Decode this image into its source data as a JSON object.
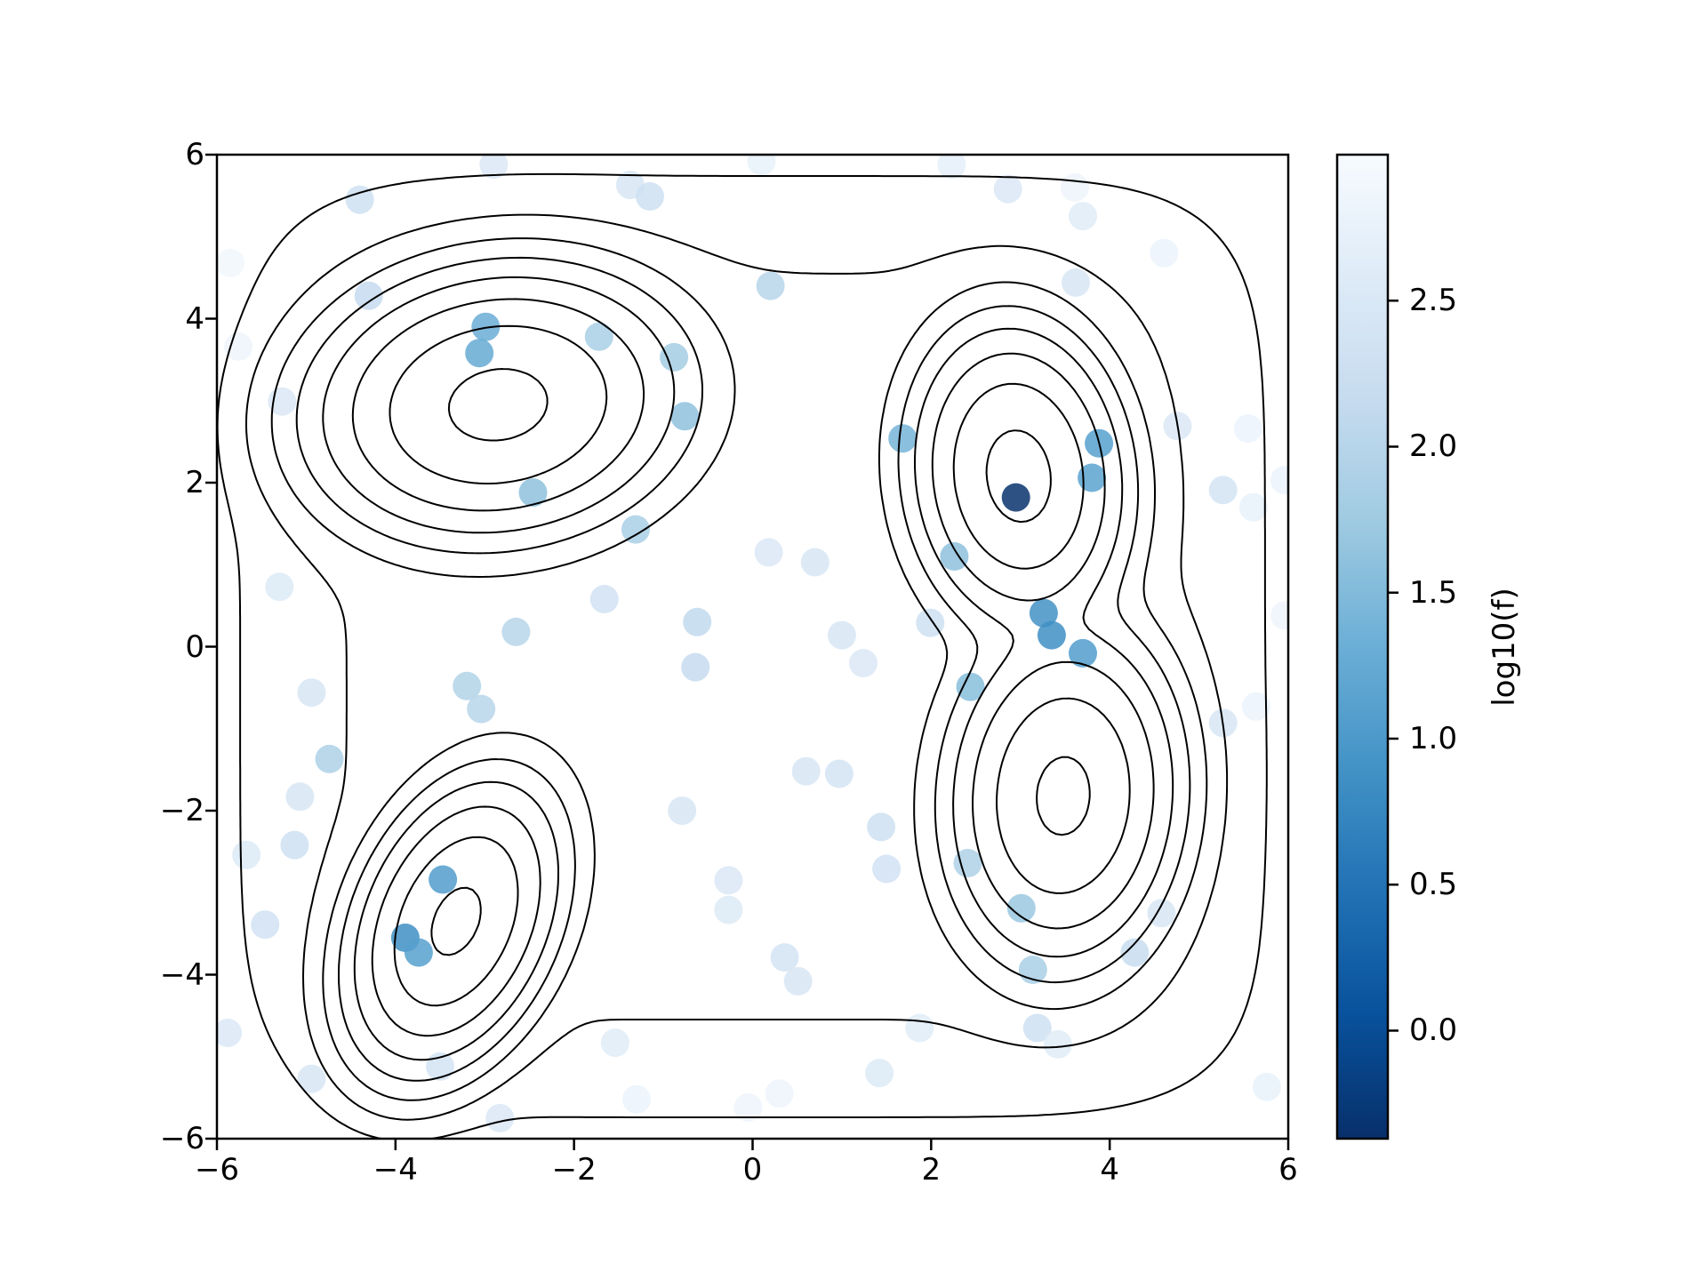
{
  "figure": {
    "background": "#ffffff",
    "title": ""
  },
  "chart_data": {
    "type": "scatter",
    "subtype": "contour+scatter",
    "title": "",
    "xlabel": "",
    "ylabel": "",
    "xlim": [
      -6,
      6
    ],
    "ylim": [
      -6,
      6
    ],
    "grid": false,
    "xtick_values": [
      -6,
      -4,
      -2,
      0,
      2,
      4,
      6
    ],
    "xtick_labels": [
      "−6",
      "−4",
      "−2",
      "0",
      "2",
      "4",
      "6"
    ],
    "ytick_values": [
      6,
      4,
      2,
      0,
      -2,
      -4,
      -6
    ],
    "ytick_labels": [
      "6",
      "4",
      "2",
      "0",
      "−2",
      "−4",
      "−6"
    ],
    "marker": {
      "radius_px": 16,
      "opacity": 0.85
    },
    "colormap": {
      "name": "Blues (reversed: high value = light, low value = dark)",
      "anchors": [
        "#f7fbff",
        "#deebf7",
        "#c6dbef",
        "#9ecae1",
        "#6baed6",
        "#4292c6",
        "#2171b5",
        "#08519c",
        "#08306b"
      ]
    },
    "colorbar": {
      "label": "log10(f)",
      "vmax": 3.0,
      "vmin": -0.37,
      "tick_values": [
        2.5,
        2.0,
        1.5,
        1.0,
        0.5,
        0.0
      ],
      "tick_labels": [
        "2.5",
        "2.0",
        "1.5",
        "1.0",
        "0.5",
        "0.0"
      ]
    },
    "contour": {
      "line_color": "#000000",
      "line_width": 2,
      "levels": [
        0.0,
        0.4,
        0.8,
        1.2,
        1.6,
        2.0,
        2.4,
        2.8
      ],
      "comment": "contour of log10(f), f = sum of 4 gaussian peaks + broad base plateau",
      "components": [
        {
          "cx": -2.85,
          "cy": 2.95,
          "sx": 0.8,
          "sy": 0.62,
          "rot": 0.2,
          "amp": 800
        },
        {
          "cx": 2.98,
          "cy": 2.08,
          "sx": 0.46,
          "sy": 0.72,
          "rot": 0.1,
          "amp": 850
        },
        {
          "cx": 3.48,
          "cy": -1.82,
          "sx": 0.5,
          "sy": 0.8,
          "rot": -0.06,
          "amp": 750
        },
        {
          "cx": -3.32,
          "cy": -3.35,
          "sx": 0.42,
          "sy": 0.72,
          "rot": -0.35,
          "amp": 750
        }
      ],
      "base": {
        "amp": 3.4,
        "scale": 5.55,
        "power": 6,
        "cx": 0,
        "cy": 0
      }
    },
    "points": [
      {
        "x": -2.9,
        "y": 5.88,
        "v": 2.5
      },
      {
        "x": -4.4,
        "y": 5.45,
        "v": 2.3
      },
      {
        "x": -1.37,
        "y": 5.63,
        "v": 2.45
      },
      {
        "x": -1.15,
        "y": 5.49,
        "v": 2.3
      },
      {
        "x": 0.1,
        "y": 5.92,
        "v": 2.75
      },
      {
        "x": 2.23,
        "y": 5.88,
        "v": 2.7
      },
      {
        "x": 2.86,
        "y": 5.58,
        "v": 2.5
      },
      {
        "x": 3.61,
        "y": 5.6,
        "v": 2.85
      },
      {
        "x": 3.7,
        "y": 5.25,
        "v": 2.6
      },
      {
        "x": 4.61,
        "y": 4.8,
        "v": 2.8
      },
      {
        "x": 3.62,
        "y": 4.44,
        "v": 2.45
      },
      {
        "x": -5.85,
        "y": 4.68,
        "v": 2.9
      },
      {
        "x": -4.3,
        "y": 4.28,
        "v": 2.15
      },
      {
        "x": 0.2,
        "y": 4.4,
        "v": 2.0
      },
      {
        "x": -2.99,
        "y": 3.9,
        "v": 1.3
      },
      {
        "x": -3.06,
        "y": 3.58,
        "v": 1.25
      },
      {
        "x": -1.72,
        "y": 3.78,
        "v": 1.85
      },
      {
        "x": -0.88,
        "y": 3.53,
        "v": 1.8
      },
      {
        "x": -5.76,
        "y": 3.66,
        "v": 2.85
      },
      {
        "x": -5.27,
        "y": 2.99,
        "v": 2.5
      },
      {
        "x": -0.76,
        "y": 2.81,
        "v": 1.6
      },
      {
        "x": 1.68,
        "y": 2.54,
        "v": 1.4
      },
      {
        "x": 3.88,
        "y": 2.48,
        "v": 1.1
      },
      {
        "x": 3.8,
        "y": 2.06,
        "v": 1.15
      },
      {
        "x": 2.95,
        "y": 1.82,
        "v": -0.35
      },
      {
        "x": 4.76,
        "y": 2.69,
        "v": 2.5
      },
      {
        "x": 5.55,
        "y": 2.66,
        "v": 2.8
      },
      {
        "x": 5.27,
        "y": 1.91,
        "v": 2.4
      },
      {
        "x": 5.61,
        "y": 1.7,
        "v": 2.75
      },
      {
        "x": 5.96,
        "y": 2.03,
        "v": 2.8
      },
      {
        "x": -2.46,
        "y": 1.88,
        "v": 1.6
      },
      {
        "x": -1.31,
        "y": 1.43,
        "v": 1.85
      },
      {
        "x": -5.3,
        "y": 0.73,
        "v": 2.55
      },
      {
        "x": -1.66,
        "y": 0.58,
        "v": 2.35
      },
      {
        "x": 2.26,
        "y": 1.1,
        "v": 1.6
      },
      {
        "x": 0.18,
        "y": 1.15,
        "v": 2.5
      },
      {
        "x": 0.7,
        "y": 1.03,
        "v": 2.45
      },
      {
        "x": 3.26,
        "y": 0.41,
        "v": 0.9
      },
      {
        "x": 3.35,
        "y": 0.14,
        "v": 0.85
      },
      {
        "x": 1.99,
        "y": 0.29,
        "v": 2.3
      },
      {
        "x": 1.0,
        "y": 0.14,
        "v": 2.45
      },
      {
        "x": -0.62,
        "y": 0.3,
        "v": 2.1
      },
      {
        "x": -2.65,
        "y": 0.18,
        "v": 2.0
      },
      {
        "x": -4.94,
        "y": -0.56,
        "v": 2.45
      },
      {
        "x": -3.2,
        "y": -0.48,
        "v": 1.95
      },
      {
        "x": -3.04,
        "y": -0.76,
        "v": 2.0
      },
      {
        "x": -0.64,
        "y": -0.25,
        "v": 2.15
      },
      {
        "x": 1.24,
        "y": -0.2,
        "v": 2.5
      },
      {
        "x": 2.44,
        "y": -0.49,
        "v": 1.55
      },
      {
        "x": 3.7,
        "y": -0.08,
        "v": 1.05
      },
      {
        "x": 5.27,
        "y": -0.93,
        "v": 2.45
      },
      {
        "x": 5.64,
        "y": -0.73,
        "v": 2.8
      },
      {
        "x": -4.74,
        "y": -1.37,
        "v": 1.9
      },
      {
        "x": -5.07,
        "y": -1.83,
        "v": 2.45
      },
      {
        "x": 0.6,
        "y": -1.52,
        "v": 2.45
      },
      {
        "x": 0.97,
        "y": -1.55,
        "v": 2.4
      },
      {
        "x": -5.13,
        "y": -2.42,
        "v": 2.3
      },
      {
        "x": -5.67,
        "y": -2.54,
        "v": 2.55
      },
      {
        "x": -0.79,
        "y": -2.0,
        "v": 2.45
      },
      {
        "x": 1.44,
        "y": -2.2,
        "v": 2.3
      },
      {
        "x": 1.5,
        "y": -2.71,
        "v": 2.35
      },
      {
        "x": 2.41,
        "y": -2.64,
        "v": 1.9
      },
      {
        "x": -3.47,
        "y": -2.84,
        "v": 1.05
      },
      {
        "x": -0.27,
        "y": -2.85,
        "v": 2.5
      },
      {
        "x": -0.27,
        "y": -3.21,
        "v": 2.55
      },
      {
        "x": -3.89,
        "y": -3.55,
        "v": 0.85
      },
      {
        "x": -3.74,
        "y": -3.73,
        "v": 1.1
      },
      {
        "x": -5.46,
        "y": -3.39,
        "v": 2.35
      },
      {
        "x": 3.01,
        "y": -3.19,
        "v": 1.7
      },
      {
        "x": 3.14,
        "y": -3.94,
        "v": 1.85
      },
      {
        "x": 4.28,
        "y": -3.73,
        "v": 2.2
      },
      {
        "x": 4.58,
        "y": -3.25,
        "v": 2.45
      },
      {
        "x": 0.36,
        "y": -3.79,
        "v": 2.4
      },
      {
        "x": 0.51,
        "y": -4.08,
        "v": 2.45
      },
      {
        "x": -5.88,
        "y": -4.71,
        "v": 2.5
      },
      {
        "x": -4.94,
        "y": -5.27,
        "v": 2.45
      },
      {
        "x": -3.5,
        "y": -5.12,
        "v": 2.4
      },
      {
        "x": -2.83,
        "y": -5.75,
        "v": 2.5
      },
      {
        "x": 1.87,
        "y": -4.65,
        "v": 2.6
      },
      {
        "x": 3.19,
        "y": -4.65,
        "v": 2.3
      },
      {
        "x": 3.42,
        "y": -4.85,
        "v": 2.6
      },
      {
        "x": 1.42,
        "y": -5.2,
        "v": 2.55
      },
      {
        "x": 5.76,
        "y": -5.37,
        "v": 2.75
      },
      {
        "x": 0.3,
        "y": -5.45,
        "v": 2.85
      },
      {
        "x": -1.3,
        "y": -5.52,
        "v": 2.8
      },
      {
        "x": -0.05,
        "y": -5.62,
        "v": 2.85
      },
      {
        "x": -1.54,
        "y": -4.83,
        "v": 2.6
      },
      {
        "x": 5.96,
        "y": 0.38,
        "v": 2.85
      }
    ]
  }
}
